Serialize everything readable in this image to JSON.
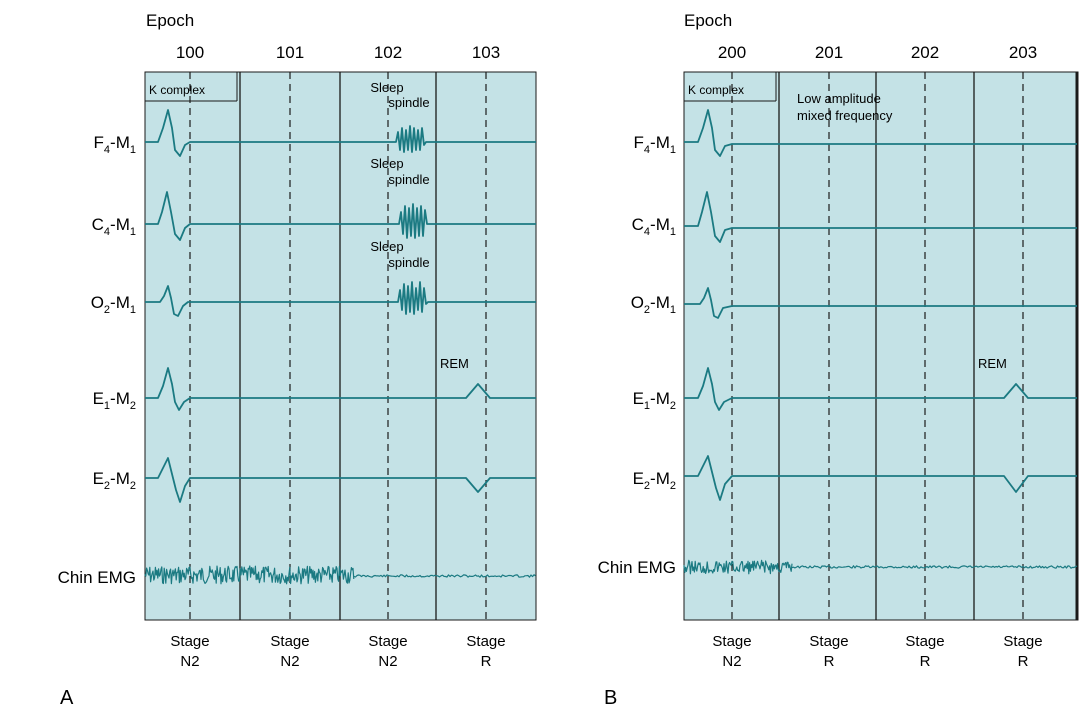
{
  "colors": {
    "panel_bg": "#c4e2e6",
    "trace": "#1b7a82",
    "grid": "#1a1a1a"
  },
  "panels": [
    {
      "letter": "A",
      "epoch_title": "Epoch",
      "epochs": [
        "100",
        "101",
        "102",
        "103"
      ],
      "stages": [
        {
          "line1": "Stage",
          "line2": "N2"
        },
        {
          "line1": "Stage",
          "line2": "N2"
        },
        {
          "line1": "Stage",
          "line2": "N2"
        },
        {
          "line1": "Stage",
          "line2": "R"
        }
      ],
      "annotations": {
        "kcomplex": "K complex",
        "spindle1_l1": "Sleep",
        "spindle1_l2": "spindle",
        "spindle2_l1": "Sleep",
        "spindle2_l2": "spindle",
        "spindle3_l1": "Sleep",
        "spindle3_l2": "spindle",
        "rem": "REM"
      }
    },
    {
      "letter": "B",
      "epoch_title": "Epoch",
      "epochs": [
        "200",
        "201",
        "202",
        "203"
      ],
      "stages": [
        {
          "line1": "Stage",
          "line2": "N2"
        },
        {
          "line1": "Stage",
          "line2": "R"
        },
        {
          "line1": "Stage",
          "line2": "R"
        },
        {
          "line1": "Stage",
          "line2": "R"
        }
      ],
      "annotations": {
        "kcomplex": "K complex",
        "lowamp_l1": "Low amplitude",
        "lowamp_l2": "mixed frequency",
        "rem": "REM"
      }
    }
  ],
  "channels": [
    {
      "main": "F",
      "sub1": "4",
      "mid": "-M",
      "sub2": "1"
    },
    {
      "main": "C",
      "sub1": "4",
      "mid": "-M",
      "sub2": "1"
    },
    {
      "main": "O",
      "sub1": "2",
      "mid": "-M",
      "sub2": "1"
    },
    {
      "main": "E",
      "sub1": "1",
      "mid": "-M",
      "sub2": "2"
    },
    {
      "main": "E",
      "sub1": "2",
      "mid": "-M",
      "sub2": "2"
    },
    {
      "main": "Chin EMG",
      "sub1": "",
      "mid": "",
      "sub2": ""
    }
  ]
}
